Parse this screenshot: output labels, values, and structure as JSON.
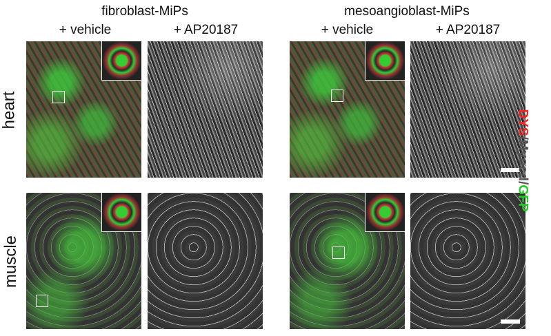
{
  "columns": {
    "group1": "fibroblast-MiPs",
    "group2": "mesoangioblast-MiPs",
    "vehicle": "+ vehicle",
    "ap": "+ AP20187"
  },
  "rows": {
    "heart": "heart",
    "muscle": "muscle"
  },
  "legend": {
    "dys": "DYS",
    "sep1": "/",
    "myocd": "Myocd",
    "sep2": "/",
    "gfp": "GFP",
    "colors": {
      "dys": "#ff2020",
      "myocd": "#555555",
      "gfp": "#22cc22"
    }
  }
}
